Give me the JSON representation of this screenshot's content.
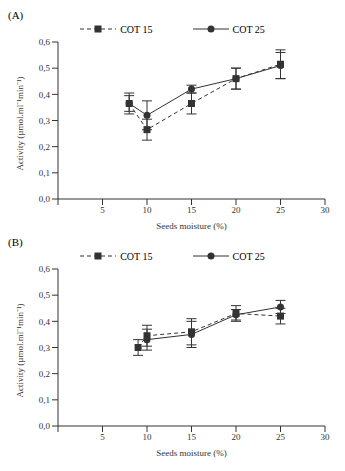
{
  "chart_data": [
    {
      "type": "line",
      "title": "(A)",
      "x_label": "Seeds moisture (%)",
      "y_label": "Activity (µmol.ml⁻¹min⁻¹)",
      "x": [
        8,
        10,
        15,
        20,
        25
      ],
      "xlim": [
        0,
        30
      ],
      "xticks": [
        0,
        5,
        10,
        15,
        20,
        25,
        30
      ],
      "ylim": [
        0,
        0.6
      ],
      "yticks": [
        {
          "value": 0,
          "label": "0,0"
        },
        {
          "value": 0.1,
          "label": "0,1"
        },
        {
          "value": 0.2,
          "label": "0,2"
        },
        {
          "value": 0.3,
          "label": "0,3"
        },
        {
          "value": 0.4,
          "label": "0,4"
        },
        {
          "value": 0.5,
          "label": "0,5"
        },
        {
          "value": 0.6,
          "label": "0,6"
        }
      ],
      "legend": "top",
      "series": [
        {
          "name": "COT 15",
          "color": "#333333",
          "marker": "square",
          "line_style": "dashed",
          "values": [
            0.365,
            0.265,
            0.365,
            0.46,
            0.515
          ],
          "error": [
            0.04,
            0.04,
            0.04,
            0.04,
            0.055
          ]
        },
        {
          "name": "COT 25",
          "color": "#333333",
          "marker": "circle",
          "line_style": "solid",
          "values": [
            0.365,
            0.32,
            0.42,
            0.46,
            0.51
          ],
          "error": [
            0.03,
            0.055,
            0.015,
            0.04,
            0.05
          ]
        }
      ]
    },
    {
      "type": "line",
      "title": "(B)",
      "x_label": "Seeds moisture (%)",
      "y_label": "Activity (µmol.ml⁻¹min⁻¹)",
      "x": [
        9,
        10,
        15,
        20,
        25
      ],
      "xlim": [
        0,
        30
      ],
      "xticks": [
        0,
        5,
        10,
        15,
        20,
        25,
        30
      ],
      "ylim": [
        0,
        0.6
      ],
      "yticks": [
        {
          "value": 0,
          "label": "0,0"
        },
        {
          "value": 0.1,
          "label": "0,1"
        },
        {
          "value": 0.2,
          "label": "0,2"
        },
        {
          "value": 0.3,
          "label": "0,3"
        },
        {
          "value": 0.4,
          "label": "0,4"
        },
        {
          "value": 0.5,
          "label": "0,5"
        },
        {
          "value": 0.6,
          "label": "0,6"
        }
      ],
      "legend": "top",
      "series": [
        {
          "name": "COT 15",
          "color": "#333333",
          "marker": "square",
          "line_style": "dashed",
          "values": [
            0.3,
            0.345,
            0.36,
            0.43,
            0.42
          ],
          "error": [
            0.03,
            0.04,
            0.05,
            0.03,
            0.03
          ]
        },
        {
          "name": "COT 25",
          "color": "#333333",
          "marker": "circle",
          "line_style": "solid",
          "values": [
            null,
            0.33,
            0.35,
            0.425,
            0.455
          ],
          "error": [
            null,
            0.04,
            0.05,
            0.02,
            0.025
          ]
        }
      ]
    }
  ]
}
